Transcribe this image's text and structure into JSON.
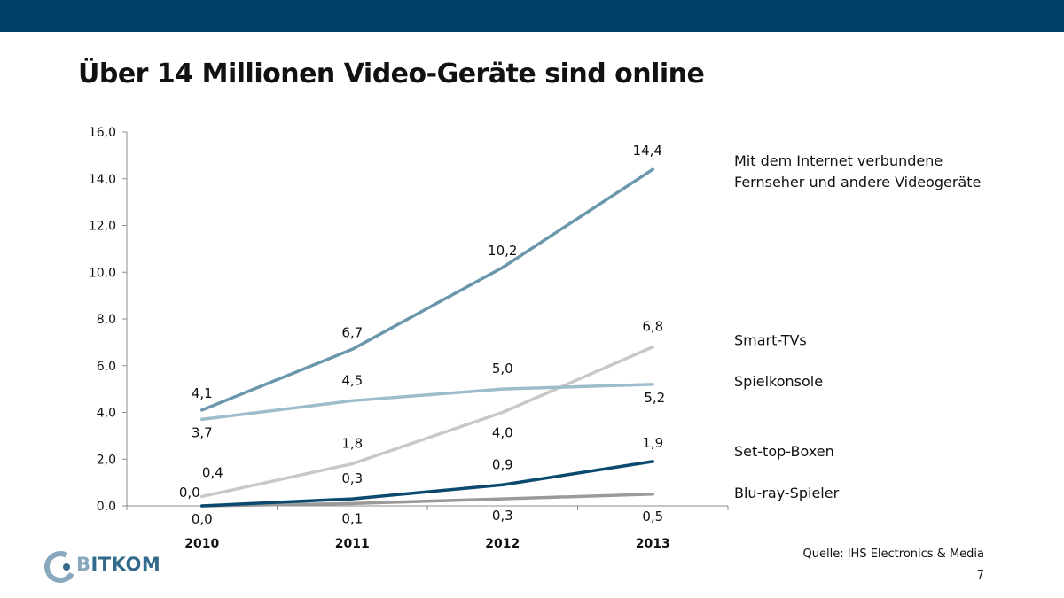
{
  "header": {
    "bar_color": "#003f66"
  },
  "slide": {
    "title": "Über 14 Millionen Video-Geräte sind online",
    "source": "Quelle: IHS Electronics & Media",
    "page_number": "7"
  },
  "logo": {
    "text_b": "B",
    "text_rest": "ITKOM",
    "icon": "bitkom-logo-icon"
  },
  "chart_data": {
    "type": "line",
    "categories": [
      "2010",
      "2011",
      "2012",
      "2013"
    ],
    "ylim": [
      0,
      16
    ],
    "yticks": [
      "0,0",
      "2,0",
      "4,0",
      "6,0",
      "8,0",
      "10,0",
      "12,0",
      "14,0",
      "16,0"
    ],
    "ytick_values": [
      0,
      2,
      4,
      6,
      8,
      10,
      12,
      14,
      16
    ],
    "grid": false,
    "series": [
      {
        "name": "Mit dem Internet verbundene Fernseher und andere Videogeräte",
        "name_lines": [
          "Mit dem Internet verbundene",
          "Fernseher und andere Videogeräte"
        ],
        "values": [
          4.1,
          6.7,
          10.2,
          14.4
        ],
        "labels": [
          "4,1",
          "6,7",
          "10,2",
          "14,4"
        ],
        "color": "#6b97ad"
      },
      {
        "name": "Smart-TVs",
        "name_lines": [
          "Smart-TVs"
        ],
        "values": [
          0.4,
          1.8,
          4.0,
          6.8
        ],
        "labels": [
          "0,4",
          "1,8",
          "4,0",
          "6,8"
        ],
        "color": "#c8c8c8"
      },
      {
        "name": "Spielkonsole",
        "name_lines": [
          "Spielkonsole"
        ],
        "values": [
          3.7,
          4.5,
          5.0,
          5.2
        ],
        "labels": [
          "3,7",
          "4,5",
          "5,0",
          "5,2"
        ],
        "color": "#9dbccc"
      },
      {
        "name": "Set-top-Boxen",
        "name_lines": [
          "Set-top-Boxen"
        ],
        "values": [
          0.0,
          0.3,
          0.9,
          1.9
        ],
        "labels": [
          "0,0",
          "0,3",
          "0,9",
          "1,9"
        ],
        "color": "#0b4a6e"
      },
      {
        "name": "Blu-ray-Spieler",
        "name_lines": [
          "Blu-ray-Spieler"
        ],
        "values": [
          0.0,
          0.1,
          0.3,
          0.5
        ],
        "labels": [
          "0,0",
          "0,1",
          "0,3",
          "0,5"
        ],
        "color": "#9a9a9a"
      }
    ]
  }
}
